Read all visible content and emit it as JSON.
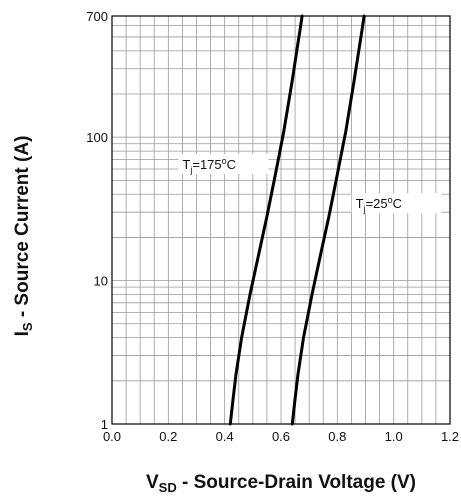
{
  "chart_data": {
    "type": "line",
    "x_axis": {
      "title_main": "V",
      "title_sub": "SD",
      "title_rest": " - Source-Drain Voltage (V)",
      "range": [
        0.0,
        1.2
      ],
      "ticks": [
        0.0,
        0.2,
        0.4,
        0.6,
        0.8,
        1.0,
        1.2
      ],
      "tick_labels": [
        "0.0",
        "0.2",
        "0.4",
        "0.6",
        "0.8",
        "1.0",
        "1.2"
      ],
      "minor_step": 0.05
    },
    "y_axis": {
      "title_main": "I",
      "title_sub": "S",
      "title_rest": " - Source Current (A)",
      "scale": "log",
      "range": [
        1,
        700
      ],
      "ticks": [
        1,
        10,
        100,
        700
      ],
      "tick_labels": [
        "1",
        "10",
        "100",
        "700"
      ]
    },
    "grid": true,
    "legend": "none",
    "series": [
      {
        "label_main": "T",
        "label_sub": "j",
        "label_rest": "=175",
        "label_sup": "o",
        "label_unit": "C",
        "color": "#000000",
        "x": [
          0.42,
          0.43,
          0.44,
          0.46,
          0.49,
          0.52,
          0.55,
          0.58,
          0.61,
          0.64,
          0.66,
          0.67,
          0.675
        ],
        "y": [
          1,
          1.5,
          2.2,
          4,
          8,
          15,
          28,
          55,
          110,
          250,
          450,
          600,
          700
        ]
      },
      {
        "label_main": "T",
        "label_sub": "j",
        "label_rest": "=25",
        "label_sup": "o",
        "label_unit": "C",
        "color": "#000000",
        "x": [
          0.64,
          0.65,
          0.66,
          0.68,
          0.71,
          0.74,
          0.77,
          0.8,
          0.83,
          0.86,
          0.88,
          0.89,
          0.895
        ],
        "y": [
          1,
          1.5,
          2.2,
          4,
          8,
          15,
          28,
          55,
          110,
          250,
          450,
          600,
          700
        ]
      }
    ]
  }
}
